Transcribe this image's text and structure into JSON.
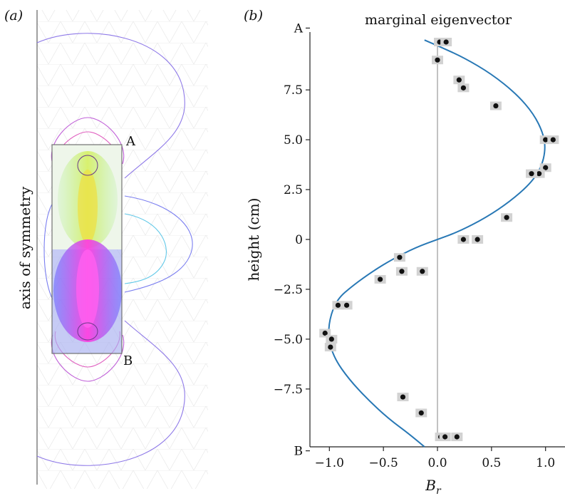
{
  "panel_a": {
    "panel_label": "(a)",
    "axis_label": "axis of symmetry",
    "marker_top": "A",
    "marker_bottom": "B"
  },
  "panel_b": {
    "panel_label": "(b)"
  },
  "chart_data": {
    "type": "scatter",
    "title": "marginal eigenvector",
    "xlabel": "B",
    "xlabel_subscript": "r",
    "ylabel": "height (cm)",
    "xlim": [
      -1.18,
      1.18
    ],
    "ylim": [
      -10.4,
      10.4
    ],
    "xticks": [
      {
        "value": -1.0,
        "label": "−1.0"
      },
      {
        "value": -0.5,
        "label": "−0.5"
      },
      {
        "value": 0.0,
        "label": "0.0"
      },
      {
        "value": 0.5,
        "label": "0.5"
      },
      {
        "value": 1.0,
        "label": "1.0"
      }
    ],
    "yticks": [
      {
        "value": 10.6,
        "label": "A"
      },
      {
        "value": 7.5,
        "label": "7.5"
      },
      {
        "value": 5.0,
        "label": "5.0"
      },
      {
        "value": 2.5,
        "label": "2.5"
      },
      {
        "value": 0.0,
        "label": "0"
      },
      {
        "value": -2.5,
        "label": "−2.5"
      },
      {
        "value": -5.0,
        "label": "−5.0"
      },
      {
        "value": -7.5,
        "label": "−7.5"
      },
      {
        "value": -10.6,
        "label": "B"
      }
    ],
    "series": [
      {
        "kind": "line",
        "color": "#2878b5",
        "x": [
          -0.12,
          -0.25,
          -0.45,
          -0.65,
          -0.82,
          -0.95,
          -1.01,
          -1.0,
          -0.93,
          -0.78,
          -0.6,
          -0.42,
          -0.2,
          0.0,
          0.2,
          0.45,
          0.67,
          0.86,
          0.96,
          1.0,
          0.98,
          0.89,
          0.73,
          0.5,
          0.25,
          0.05,
          -0.12
        ],
        "y": [
          -10.4,
          -9.8,
          -9.0,
          -8.0,
          -7.0,
          -6.0,
          -5.0,
          -4.0,
          -3.0,
          -2.3,
          -1.6,
          -1.0,
          -0.4,
          0.0,
          0.4,
          1.1,
          1.9,
          2.8,
          3.6,
          4.5,
          5.3,
          6.3,
          7.3,
          8.3,
          9.1,
          9.6,
          10.0
        ]
      },
      {
        "kind": "scatter",
        "color": "#111111",
        "marker_bg": "#d2d2d2",
        "x": [
          0.02,
          0.08,
          0.0,
          0.2,
          0.24,
          0.54,
          1.0,
          1.07,
          1.0,
          0.9,
          0.94,
          0.87,
          0.64,
          0.24,
          0.37,
          -0.35,
          -0.33,
          -0.14,
          -0.53,
          -0.92,
          -0.84,
          -1.04,
          -0.98,
          -0.99,
          -0.32,
          -0.15,
          0.03,
          0.07,
          0.18
        ],
        "y": [
          9.9,
          9.9,
          9.0,
          8.0,
          7.6,
          6.7,
          5.0,
          5.0,
          3.6,
          3.3,
          3.3,
          3.3,
          1.1,
          0.0,
          0.0,
          -0.9,
          -1.6,
          -1.6,
          -2.0,
          -3.3,
          -3.3,
          -4.7,
          -5.0,
          -5.4,
          -7.9,
          -8.7,
          -9.9,
          -9.9,
          -9.9
        ]
      }
    ],
    "grid": false,
    "zero_line": true,
    "legend": "none"
  }
}
